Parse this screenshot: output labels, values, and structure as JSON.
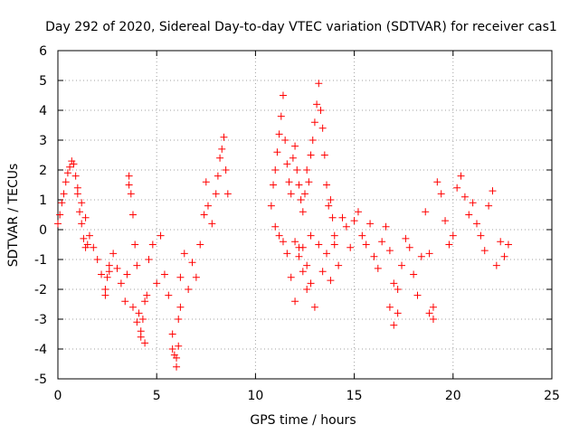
{
  "chart_data": {
    "type": "scatter",
    "title": "Day 292 of 2020, Sidereal Day-to-day VTEC variation (SDTVAR) for receiver cas1",
    "xlabel": "GPS time / hours",
    "ylabel": "SDTVAR / TECUs",
    "xlim": [
      0,
      25
    ],
    "ylim": [
      -5,
      6
    ],
    "xticks": [
      0,
      5,
      10,
      15,
      20,
      25
    ],
    "yticks": [
      -5,
      -4,
      -3,
      -2,
      -1,
      0,
      1,
      2,
      3,
      4,
      5,
      6
    ],
    "grid": true,
    "marker": "+",
    "series": [
      {
        "name": "cas1",
        "color": "#ff0000",
        "x": [
          0.0,
          0.1,
          0.2,
          0.3,
          0.4,
          0.5,
          0.6,
          0.7,
          0.8,
          0.9,
          1.0,
          1.1,
          1.2,
          1.3,
          1.4,
          1.5,
          1.6,
          1.8,
          2.0,
          2.2,
          2.4,
          2.5,
          2.6,
          2.8,
          3.0,
          3.2,
          3.4,
          3.5,
          3.6,
          3.7,
          3.8,
          3.9,
          4.0,
          4.1,
          4.2,
          4.3,
          4.4,
          4.5,
          4.6,
          4.8,
          5.0,
          5.2,
          5.4,
          5.6,
          5.8,
          5.9,
          6.0,
          6.1,
          6.2,
          6.4,
          6.6,
          6.8,
          7.0,
          7.2,
          7.4,
          7.5,
          7.6,
          7.8,
          8.0,
          8.1,
          8.2,
          8.3,
          8.4,
          8.5,
          8.6,
          10.8,
          10.9,
          11.0,
          11.1,
          11.2,
          11.3,
          11.4,
          11.5,
          11.6,
          11.7,
          11.8,
          11.9,
          12.0,
          12.1,
          12.2,
          12.3,
          12.4,
          12.5,
          12.6,
          12.7,
          12.8,
          12.9,
          13.0,
          13.1,
          13.2,
          13.3,
          13.4,
          13.5,
          13.6,
          13.7,
          13.8,
          13.9,
          14.0,
          14.2,
          14.4,
          14.6,
          14.8,
          15.0,
          15.2,
          15.4,
          15.6,
          15.8,
          16.0,
          16.2,
          16.4,
          16.6,
          16.8,
          17.0,
          17.2,
          17.4,
          17.6,
          17.8,
          18.0,
          18.2,
          18.4,
          18.6,
          18.8,
          19.0,
          19.2,
          19.4,
          19.6,
          19.8,
          20.0,
          20.2,
          20.4,
          20.6,
          20.8,
          21.0,
          21.2,
          21.4,
          21.6,
          21.8,
          22.0,
          22.2,
          22.4,
          22.6,
          22.8,
          11.0,
          11.2,
          11.4,
          11.6,
          11.8,
          12.0,
          12.2,
          12.4,
          12.6,
          12.8,
          13.0,
          13.2,
          13.4,
          13.6,
          13.8,
          14.0,
          3.6,
          3.8,
          4.0,
          4.2,
          4.4,
          5.8,
          6.0,
          6.1,
          6.2,
          16.8,
          17.0,
          17.2,
          18.8,
          19.0,
          1.0,
          1.2,
          1.4,
          2.4,
          2.6,
          12.0,
          12.2,
          12.4,
          12.6,
          12.8
        ],
        "y": [
          0.2,
          0.5,
          0.9,
          1.2,
          1.6,
          1.9,
          2.1,
          2.3,
          2.2,
          1.8,
          1.2,
          0.6,
          0.2,
          -0.3,
          -0.6,
          -0.5,
          -0.2,
          -0.6,
          -1.0,
          -1.5,
          -2.0,
          -1.6,
          -1.2,
          -0.8,
          -1.3,
          -1.8,
          -2.4,
          -1.5,
          1.5,
          1.2,
          0.5,
          -0.5,
          -1.2,
          -2.8,
          -3.4,
          -3.0,
          -3.8,
          -2.2,
          -1.0,
          -0.5,
          -1.8,
          -0.2,
          -1.5,
          -2.2,
          -3.5,
          -4.2,
          -4.6,
          -3.0,
          -1.6,
          -0.8,
          -2.0,
          -1.1,
          -1.6,
          -0.5,
          0.5,
          1.6,
          0.8,
          0.2,
          1.2,
          1.8,
          2.4,
          2.7,
          3.1,
          2.0,
          1.2,
          0.8,
          1.5,
          2.0,
          2.6,
          3.2,
          3.8,
          4.5,
          3.0,
          2.2,
          1.6,
          1.2,
          2.4,
          2.8,
          2.0,
          1.5,
          1.0,
          0.6,
          1.2,
          2.0,
          1.6,
          2.5,
          3.0,
          3.6,
          4.2,
          4.9,
          4.0,
          3.4,
          2.5,
          1.5,
          0.8,
          1.0,
          0.4,
          -0.5,
          -1.2,
          0.4,
          0.1,
          -0.6,
          0.3,
          0.6,
          -0.2,
          -0.5,
          0.2,
          -0.9,
          -1.3,
          -0.4,
          0.1,
          -0.7,
          -1.8,
          -2.8,
          -1.2,
          -0.3,
          -0.6,
          -1.5,
          -2.2,
          -0.9,
          0.6,
          -0.8,
          -2.6,
          1.6,
          1.2,
          0.3,
          -0.5,
          -0.2,
          1.4,
          1.8,
          1.1,
          0.5,
          0.9,
          0.2,
          -0.2,
          -0.7,
          0.8,
          1.3,
          -1.2,
          -0.4,
          -0.9,
          -0.5,
          0.1,
          -0.2,
          -0.4,
          -0.8,
          -1.6,
          -2.4,
          -0.9,
          -0.6,
          -1.2,
          -1.8,
          -2.6,
          -0.5,
          -1.4,
          -0.8,
          -1.7,
          -0.2,
          1.8,
          -2.6,
          -3.1,
          -3.6,
          -2.4,
          -4.0,
          -4.3,
          -3.9,
          -2.6,
          -2.6,
          -3.2,
          -2.0,
          -2.8,
          -3.0,
          1.4,
          0.9,
          0.4,
          -2.2,
          -1.4,
          -0.4,
          -0.6,
          -1.4,
          -2.0,
          -0.2
        ]
      }
    ]
  }
}
